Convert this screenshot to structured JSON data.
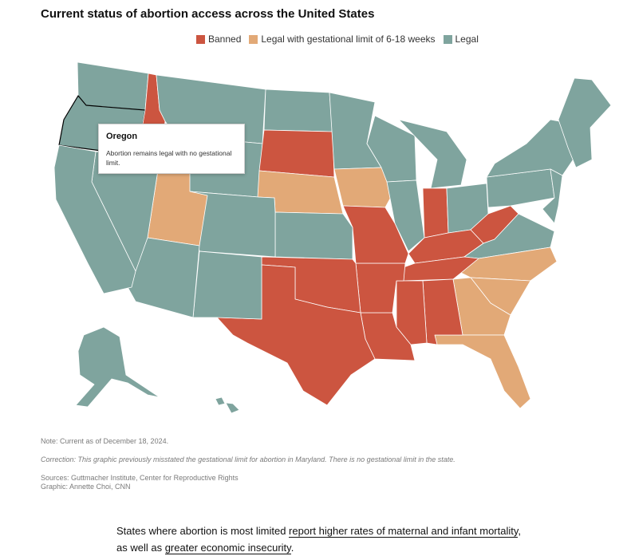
{
  "title": "Current status of abortion access across the United States",
  "legend": [
    {
      "label": "Banned",
      "color": "#cc5540"
    },
    {
      "label": "Legal with gestational limit of 6-18 weeks",
      "color": "#e2a977"
    },
    {
      "label": "Legal",
      "color": "#7fa49e"
    }
  ],
  "tooltip": {
    "title": "Oregon",
    "body": "Abortion remains legal with no gestational limit."
  },
  "notes": {
    "note": "Note: Current as of December 18, 2024.",
    "correction": "Correction: This graphic previously misstated the gestational limit for abortion in Maryland. There is no gestational limit in the state.",
    "sources": "Sources: Guttmacher Institute, Center for Reproductive Rights",
    "graphic": "Graphic: Annette Choi, CNN"
  },
  "caption": {
    "part1": "States where abortion is most limited ",
    "link1": "report higher rates of maternal and infant mortality",
    "part2": ",",
    "part3": "as well as ",
    "link2": "greater economic insecurity",
    "part4": "."
  },
  "colors": {
    "banned": "#cc5540",
    "limited": "#e2a977",
    "legal": "#7fa49e",
    "border": "#ffffff"
  }
}
